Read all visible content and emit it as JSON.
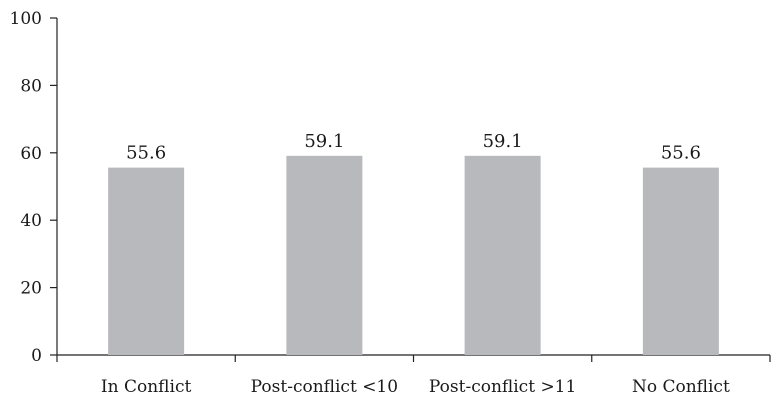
{
  "chart_data": {
    "type": "bar",
    "categories": [
      "In Conflict",
      "Post-conflict <10",
      "Post-conflict >11",
      "No Conflict"
    ],
    "values": [
      55.6,
      59.1,
      59.1,
      55.6
    ],
    "data_labels": [
      "55.6",
      "59.1",
      "59.1",
      "55.6"
    ],
    "title": "",
    "xlabel": "",
    "ylabel": "",
    "ylim": [
      0,
      100
    ],
    "yticks": [
      0,
      20,
      40,
      60,
      80,
      100
    ],
    "ytick_labels": [
      "0",
      "20",
      "40",
      "60",
      "80",
      "100"
    ],
    "grid": false,
    "legend": "none",
    "colors": {
      "bar": "#b8b9bd",
      "axis": "#222222",
      "text": "#1a1a1a"
    }
  }
}
